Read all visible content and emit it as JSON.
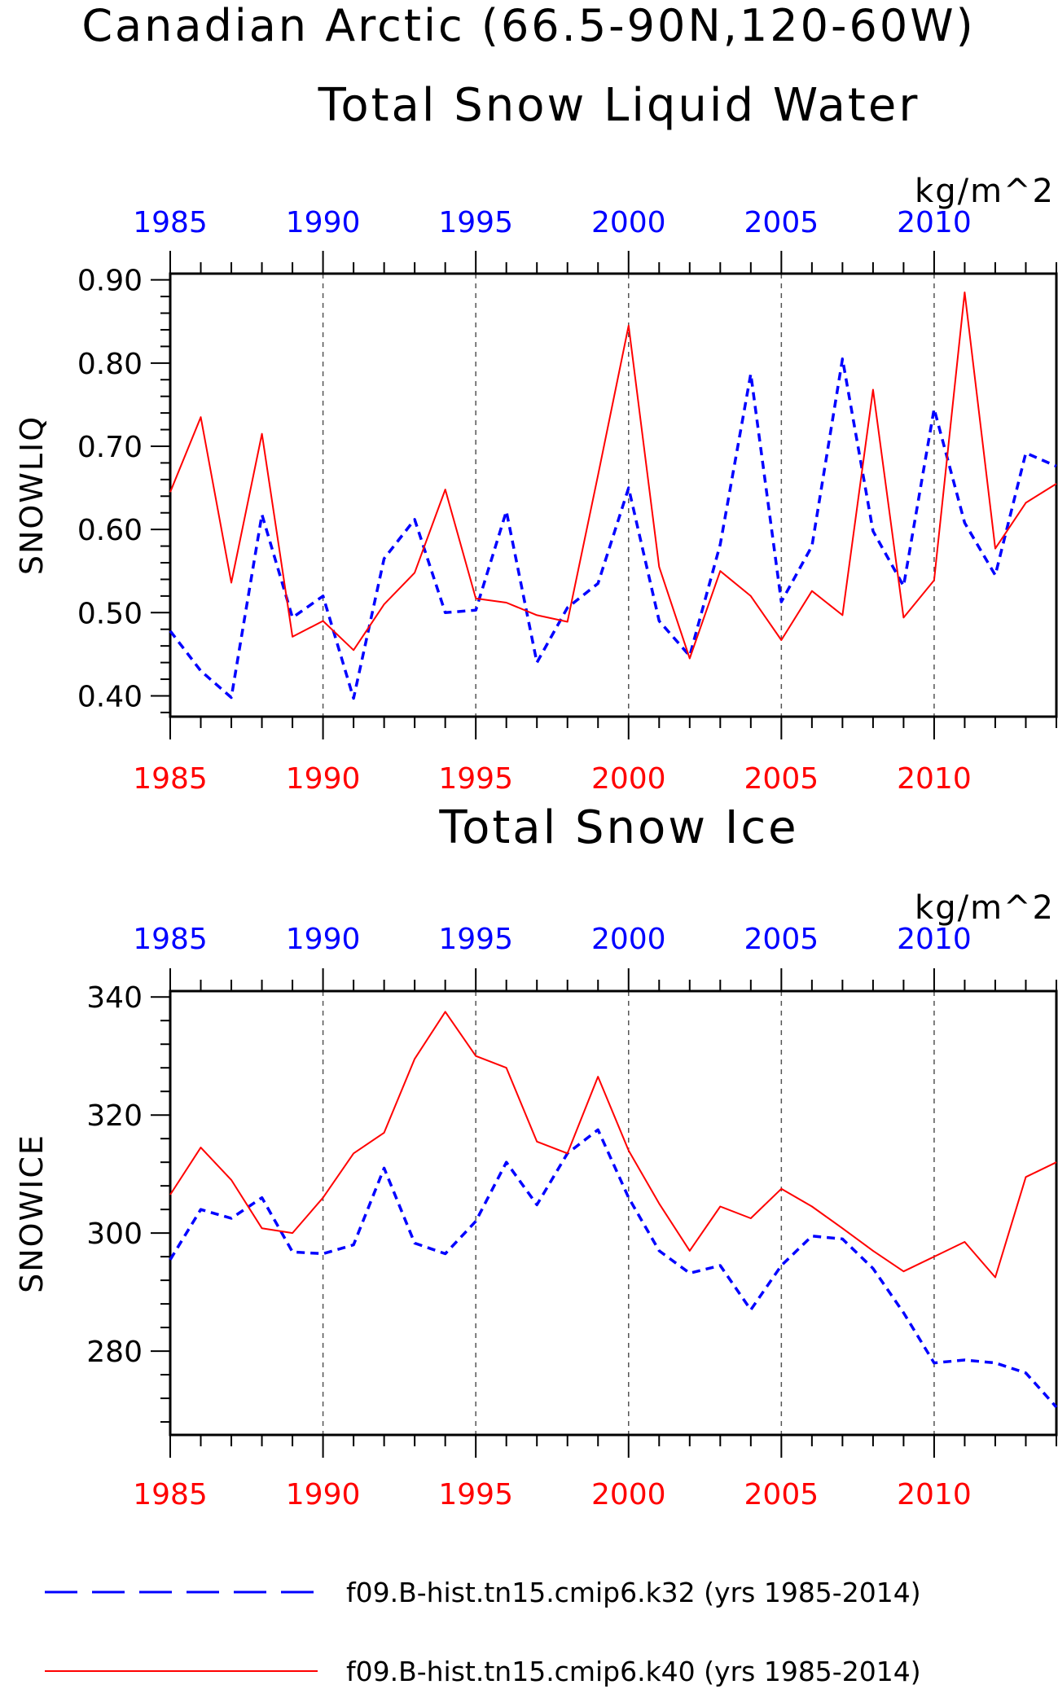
{
  "figure": {
    "title_line1": "Canadian Arctic (66.5-90N,120-60W)"
  },
  "colors": {
    "k32": "#0000ff",
    "k40": "#ff0000",
    "axis": "#000000",
    "grid": "#555555"
  },
  "chart_data": [
    {
      "type": "line",
      "title": "Total Snow Liquid Water",
      "units": "kg/m^2",
      "ylabel": "SNOWLIQ",
      "xlim": [
        1985,
        2014
      ],
      "ylim": [
        0.375,
        0.9075
      ],
      "x_ticks": [
        1985,
        1990,
        1995,
        2000,
        2005,
        2010
      ],
      "y_ticks": [
        "0.40",
        "0.50",
        "0.60",
        "0.70",
        "0.80",
        "0.90"
      ],
      "y_tick_values": [
        0.4,
        0.5,
        0.6,
        0.7,
        0.8,
        0.9
      ],
      "grid": "vertical dashed at major x ticks",
      "x": [
        1985,
        1986,
        1987,
        1988,
        1989,
        1990,
        1991,
        1992,
        1993,
        1994,
        1995,
        1996,
        1997,
        1998,
        1999,
        2000,
        2001,
        2002,
        2003,
        2004,
        2005,
        2006,
        2007,
        2008,
        2009,
        2010,
        2011,
        2012,
        2013,
        2014
      ],
      "series": [
        {
          "name": "f09.B-hist.tn15.cmip6.k32 (yrs 1985-2014)",
          "style": "dashed",
          "color": "#0000ff",
          "values": [
            0.478,
            0.43,
            0.398,
            0.618,
            0.494,
            0.52,
            0.397,
            0.565,
            0.612,
            0.5,
            0.503,
            0.622,
            0.44,
            0.506,
            0.535,
            0.65,
            0.49,
            0.448,
            0.582,
            0.787,
            0.513,
            0.58,
            0.805,
            0.598,
            0.532,
            0.745,
            0.608,
            0.545,
            0.692,
            0.676
          ]
        },
        {
          "name": "f09.B-hist.tn15.cmip6.k40 (yrs 1985-2014)",
          "style": "solid",
          "color": "#ff0000",
          "values": [
            0.645,
            0.735,
            0.536,
            0.715,
            0.471,
            0.49,
            0.455,
            0.51,
            0.548,
            0.648,
            0.517,
            0.512,
            0.497,
            0.489,
            0.665,
            0.845,
            0.555,
            0.445,
            0.55,
            0.52,
            0.467,
            0.526,
            0.497,
            0.768,
            0.494,
            0.539,
            0.885,
            0.577,
            0.632,
            0.655
          ]
        }
      ]
    },
    {
      "type": "line",
      "title": "Total Snow Ice",
      "units": "kg/m^2",
      "ylabel": "SNOWICE",
      "xlim": [
        1985,
        2014
      ],
      "ylim": [
        265.8,
        341.0
      ],
      "x_ticks": [
        1985,
        1990,
        1995,
        2000,
        2005,
        2010
      ],
      "y_ticks": [
        "280",
        "300",
        "320",
        "340"
      ],
      "y_tick_values": [
        280,
        300,
        320,
        340
      ],
      "grid": "vertical dashed at major x ticks",
      "x": [
        1985,
        1986,
        1987,
        1988,
        1989,
        1990,
        1991,
        1992,
        1993,
        1994,
        1995,
        1996,
        1997,
        1998,
        1999,
        2000,
        2001,
        2002,
        2003,
        2004,
        2005,
        2006,
        2007,
        2008,
        2009,
        2010,
        2011,
        2012,
        2013,
        2014
      ],
      "series": [
        {
          "name": "f09.B-hist.tn15.cmip6.k32 (yrs 1985-2014)",
          "style": "dashed",
          "color": "#0000ff",
          "values": [
            295.5,
            304.0,
            302.5,
            306.0,
            296.8,
            296.5,
            298.0,
            311.0,
            298.3,
            296.5,
            302.0,
            312.0,
            304.8,
            313.5,
            317.5,
            306.0,
            297.0,
            293.2,
            294.5,
            287.0,
            294.5,
            299.5,
            299.0,
            294.0,
            286.5,
            278.0,
            278.5,
            278.0,
            276.3,
            270.5
          ]
        },
        {
          "name": "f09.B-hist.tn15.cmip6.k40 (yrs 1985-2014)",
          "style": "solid",
          "color": "#ff0000",
          "values": [
            306.5,
            314.5,
            309.0,
            300.8,
            300.0,
            306.0,
            313.5,
            317.0,
            329.5,
            337.5,
            330.0,
            328.0,
            315.5,
            313.5,
            326.5,
            314.0,
            305.0,
            297.0,
            304.5,
            302.5,
            307.5,
            304.5,
            300.8,
            297.0,
            293.5,
            296.0,
            298.5,
            292.5,
            309.5,
            312.0
          ]
        }
      ]
    }
  ]
}
